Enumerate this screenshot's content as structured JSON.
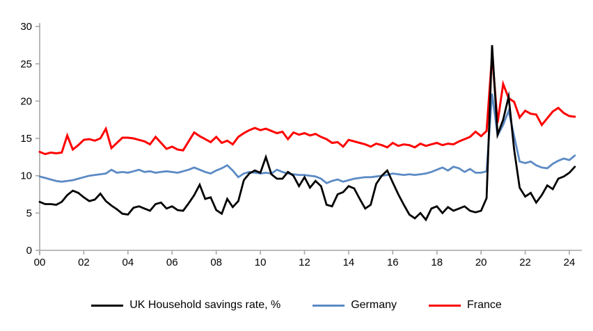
{
  "chart_data": {
    "type": "line",
    "title": "",
    "xlabel": "",
    "ylabel": "",
    "x_start_year": 2000,
    "x_quarter_step": 0.25,
    "xlim": [
      2000,
      2024.5
    ],
    "ylim": [
      0,
      30
    ],
    "grid": false,
    "legend_position": "bottom",
    "axis_color": "#A6A6A6",
    "label_color": "#000000",
    "y_ticks": [
      "0",
      "5",
      "10",
      "15",
      "20",
      "25",
      "30"
    ],
    "x_tick_labels": [
      "00",
      "02",
      "04",
      "06",
      "08",
      "10",
      "12",
      "14",
      "16",
      "18",
      "20",
      "22",
      "24"
    ],
    "x_tick_step_years": 2,
    "series": [
      {
        "name": "UK Household savings rate, %",
        "color": "#000000",
        "stroke_width": 2.8,
        "values": [
          6.5,
          6.2,
          6.2,
          6.1,
          6.5,
          7.4,
          8.0,
          7.7,
          7.1,
          6.6,
          6.8,
          7.6,
          6.6,
          6.0,
          5.5,
          4.9,
          4.8,
          5.7,
          5.9,
          5.6,
          5.3,
          6.2,
          6.4,
          5.6,
          5.9,
          5.4,
          5.3,
          6.3,
          7.4,
          8.8,
          6.9,
          7.1,
          5.4,
          4.9,
          6.9,
          5.8,
          6.6,
          9.4,
          10.3,
          10.7,
          10.4,
          12.5,
          10.2,
          9.6,
          9.6,
          10.5,
          10.0,
          8.6,
          9.8,
          8.4,
          9.3,
          8.6,
          6.1,
          5.9,
          7.5,
          7.8,
          8.6,
          8.3,
          6.9,
          5.6,
          6.1,
          8.9,
          10.0,
          10.7,
          9.1,
          7.5,
          6.1,
          4.8,
          4.3,
          5.0,
          4.1,
          5.6,
          5.9,
          5.0,
          5.8,
          5.3,
          5.6,
          5.9,
          5.3,
          5.1,
          5.3,
          7.0,
          27.5,
          15.5,
          17.5,
          20.6,
          13.5,
          8.4,
          7.2,
          7.7,
          6.4,
          7.4,
          8.7,
          8.2,
          9.6,
          9.9,
          10.4,
          11.2
        ]
      },
      {
        "name": "Germany",
        "color": "#5B8AC4",
        "stroke_width": 2.8,
        "values": [
          9.9,
          9.7,
          9.5,
          9.3,
          9.2,
          9.3,
          9.4,
          9.6,
          9.8,
          10.0,
          10.1,
          10.2,
          10.3,
          10.8,
          10.4,
          10.5,
          10.4,
          10.6,
          10.8,
          10.5,
          10.6,
          10.4,
          10.5,
          10.6,
          10.5,
          10.4,
          10.6,
          10.8,
          11.1,
          10.8,
          10.5,
          10.3,
          10.7,
          11.0,
          11.4,
          10.7,
          9.8,
          10.3,
          10.5,
          10.4,
          10.3,
          10.4,
          10.3,
          10.8,
          10.5,
          10.3,
          10.2,
          10.1,
          10.1,
          10.0,
          9.9,
          9.6,
          9.0,
          9.3,
          9.5,
          9.2,
          9.4,
          9.6,
          9.7,
          9.8,
          9.8,
          9.9,
          10.0,
          10.1,
          10.3,
          10.2,
          10.1,
          10.2,
          10.1,
          10.2,
          10.3,
          10.5,
          10.8,
          11.1,
          10.7,
          11.2,
          11.0,
          10.5,
          10.9,
          10.4,
          10.4,
          10.6,
          21.0,
          15.4,
          16.8,
          18.7,
          15.3,
          11.9,
          11.7,
          11.9,
          11.4,
          11.1,
          11.0,
          11.6,
          12.0,
          12.3,
          12.1,
          12.7
        ]
      },
      {
        "name": "France",
        "color": "#FF0000",
        "stroke_width": 3.0,
        "values": [
          13.2,
          12.9,
          13.1,
          13.0,
          13.1,
          15.4,
          13.5,
          14.1,
          14.8,
          14.9,
          14.7,
          15.0,
          16.3,
          13.7,
          14.4,
          15.1,
          15.1,
          15.0,
          14.8,
          14.6,
          14.2,
          15.2,
          14.4,
          13.6,
          13.9,
          13.5,
          13.4,
          14.6,
          15.8,
          15.3,
          14.9,
          14.5,
          15.2,
          14.4,
          14.7,
          14.2,
          15.2,
          15.7,
          16.1,
          16.4,
          16.1,
          16.3,
          16.0,
          15.7,
          15.9,
          14.9,
          15.8,
          15.5,
          15.7,
          15.4,
          15.6,
          15.2,
          14.9,
          14.4,
          14.5,
          13.9,
          14.8,
          14.6,
          14.4,
          14.2,
          13.9,
          14.3,
          14.1,
          13.8,
          14.4,
          14.0,
          14.2,
          14.1,
          13.8,
          14.3,
          14.0,
          14.2,
          14.4,
          14.1,
          14.3,
          14.2,
          14.6,
          14.9,
          15.2,
          15.9,
          15.3,
          16.0,
          26.2,
          17.1,
          22.3,
          20.4,
          19.9,
          17.8,
          18.7,
          18.3,
          18.2,
          16.8,
          17.7,
          18.6,
          19.1,
          18.4,
          18.0,
          17.9
        ]
      }
    ]
  }
}
